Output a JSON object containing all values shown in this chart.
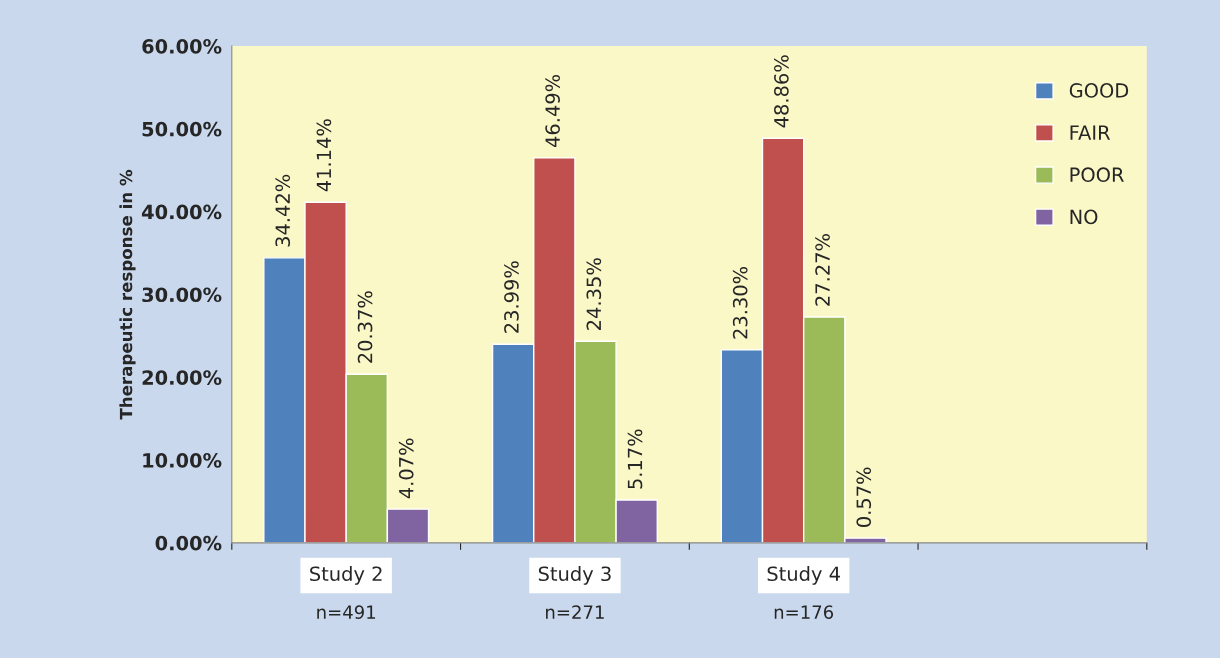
{
  "chart_data": {
    "type": "bar",
    "ylabel": "Therapeutic response in %",
    "categories": [
      "Study 2",
      "Study 3",
      "Study 4",
      null
    ],
    "series": [
      {
        "name": "GOOD",
        "color": "#4f81bd",
        "values": [
          34.42,
          23.99,
          23.3,
          null
        ],
        "value_labels": [
          "34.42%",
          "23.99%",
          "23.30%",
          null
        ]
      },
      {
        "name": "FAIR",
        "color": "#c0504d",
        "values": [
          41.14,
          46.49,
          48.86,
          null
        ],
        "value_labels": [
          "41.14%",
          "46.49%",
          "48.86%",
          null
        ]
      },
      {
        "name": "POOR",
        "color": "#9bbb59",
        "values": [
          20.37,
          24.35,
          27.27,
          null
        ],
        "value_labels": [
          "20.37%",
          "24.35%",
          "27.27%",
          null
        ]
      },
      {
        "name": "NO",
        "color": "#8064a2",
        "values": [
          4.07,
          5.17,
          0.57,
          null
        ],
        "value_labels": [
          "4.07%",
          "5.17%",
          "0.57%",
          null
        ]
      }
    ],
    "ylim": [
      0,
      60
    ],
    "yticks": [
      {
        "value": 0,
        "label": "0.00%"
      },
      {
        "value": 10,
        "label": "10.00%"
      },
      {
        "value": 20,
        "label": "20.00%"
      },
      {
        "value": 30,
        "label": "30.00%"
      },
      {
        "value": 40,
        "label": "40.00%"
      },
      {
        "value": 50,
        "label": "50.00%"
      },
      {
        "value": 60,
        "label": "60.00%"
      }
    ],
    "annotations": [
      "n=491",
      "n=271",
      "n=176"
    ],
    "grid": false,
    "legend": "right"
  }
}
